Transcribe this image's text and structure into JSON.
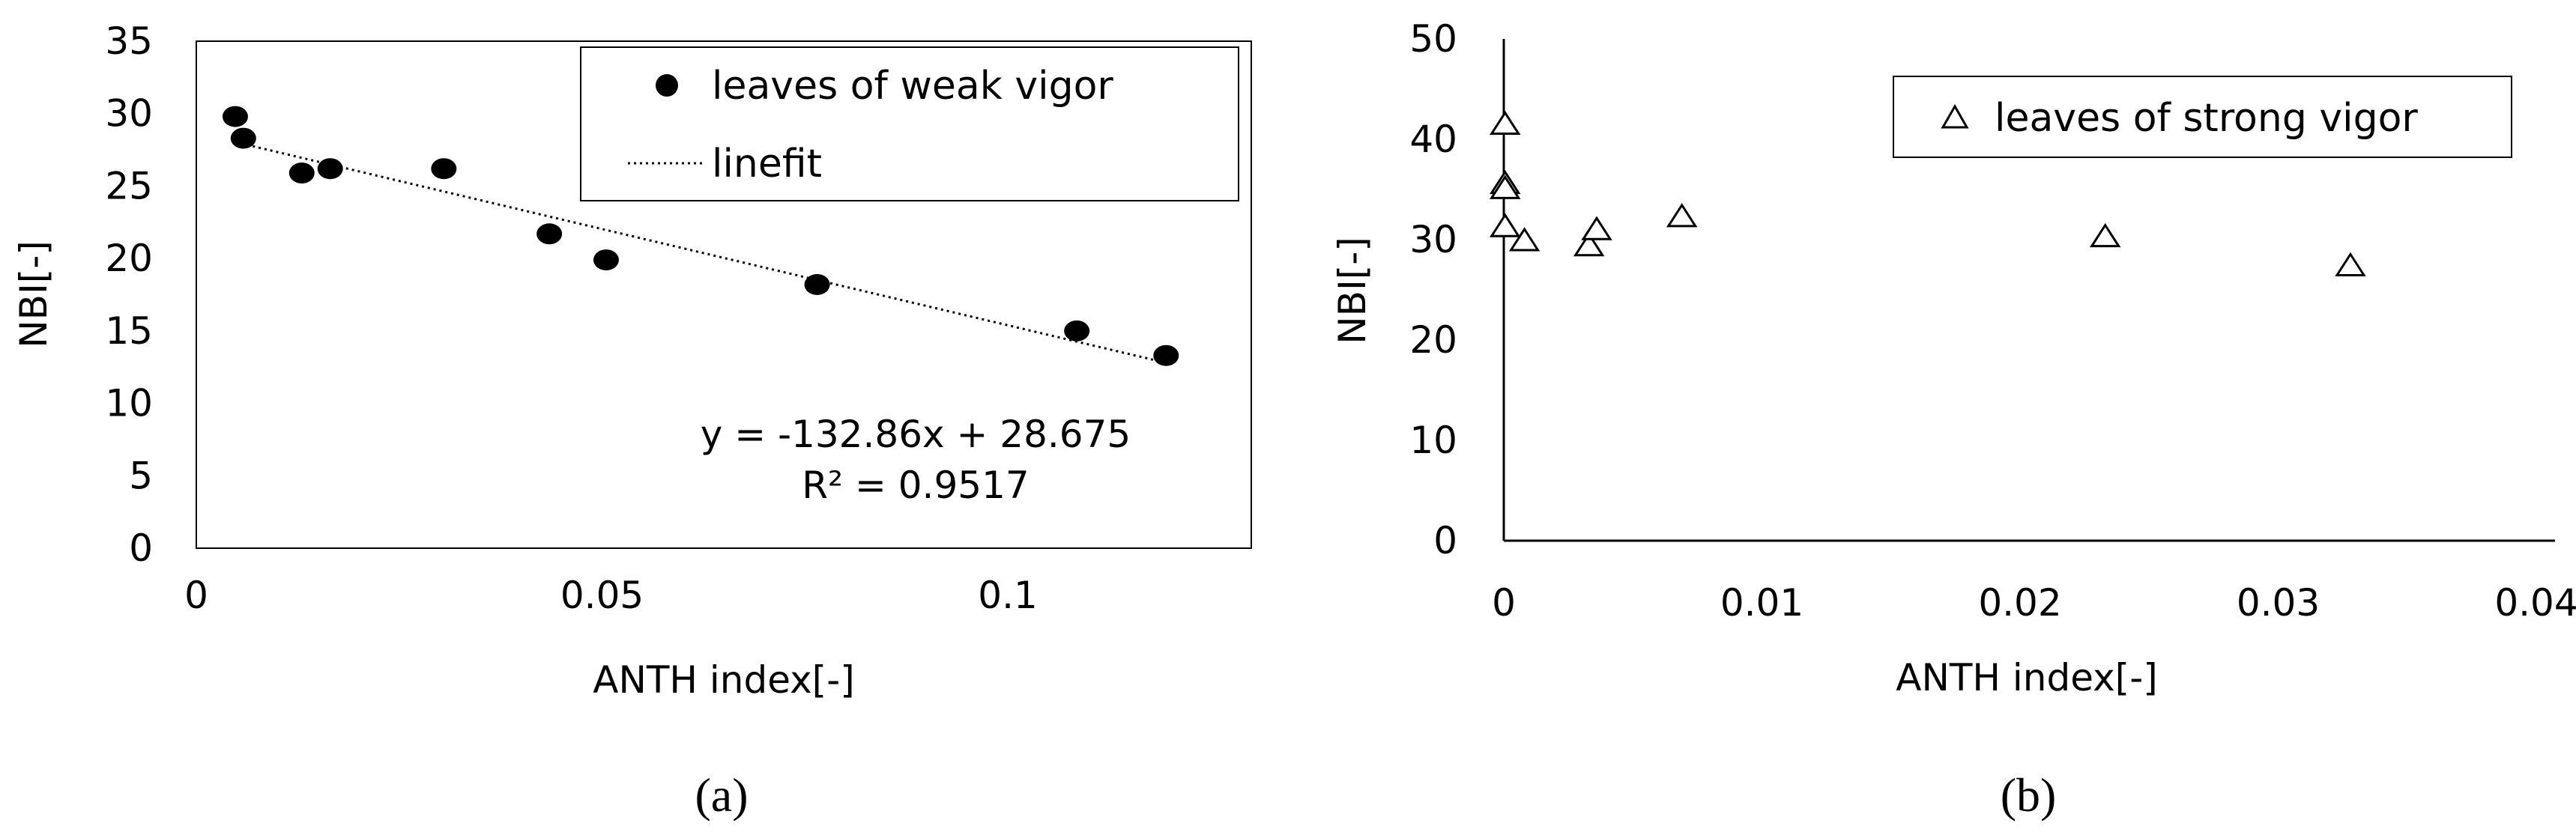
{
  "chart_data": [
    {
      "type": "scatter",
      "panel_label": "(a)",
      "xlabel": "ANTH index[-]",
      "ylabel": "NBI[-]",
      "xlim": [
        0,
        0.13
      ],
      "ylim": [
        0,
        35
      ],
      "x_ticks": [
        "0",
        "0.05",
        "0.1"
      ],
      "x_tick_values": [
        0,
        0.05,
        0.1
      ],
      "y_ticks": [
        "0",
        "5",
        "10",
        "15",
        "20",
        "25",
        "30",
        "35"
      ],
      "y_tick_values": [
        0,
        5,
        10,
        15,
        20,
        25,
        30,
        35
      ],
      "grid": false,
      "legend_position": "top-right",
      "series": [
        {
          "name": "leaves of weak vigor",
          "marker": "filled-circle",
          "color": "#000000",
          "x": [
            0.0048,
            0.0058,
            0.013,
            0.0165,
            0.0305,
            0.0435,
            0.0505,
            0.0765,
            0.1085,
            0.1195
          ],
          "y": [
            29.8,
            28.3,
            25.9,
            26.2,
            26.2,
            21.7,
            19.9,
            18.2,
            15.0,
            13.3
          ]
        },
        {
          "name": "linefit",
          "kind": "trendline",
          "style": "dotted",
          "slope": -132.86,
          "intercept": 28.675,
          "x_range": [
            0.0048,
            0.1195
          ]
        }
      ],
      "annotations": [
        "y = -132.86x + 28.675",
        "R² = 0.9517"
      ]
    },
    {
      "type": "scatter",
      "panel_label": "(b)",
      "xlabel": "ANTH index[-]",
      "ylabel": "NBI[-]",
      "xlim": [
        0,
        0.04
      ],
      "ylim": [
        0,
        50
      ],
      "x_ticks": [
        "0",
        "0.01",
        "0.02",
        "0.03",
        "0.04"
      ],
      "x_tick_values": [
        0,
        0.01,
        0.02,
        0.03,
        0.04
      ],
      "y_ticks": [
        "0",
        "10",
        "20",
        "30",
        "40",
        "50"
      ],
      "y_tick_values": [
        0,
        10,
        20,
        30,
        40,
        50
      ],
      "grid": false,
      "legend_position": "top-right",
      "series": [
        {
          "name": "leaves of strong vigor",
          "marker": "open-triangle",
          "color": "#000000",
          "x": [
            5e-05,
            5e-05,
            5e-05,
            5e-05,
            0.0008,
            0.0033,
            0.0036,
            0.0069,
            0.0233,
            0.0328
          ],
          "y": [
            41.6,
            35.7,
            35.2,
            31.4,
            30.0,
            29.5,
            31.1,
            32.4,
            30.4,
            27.5
          ]
        }
      ]
    }
  ]
}
